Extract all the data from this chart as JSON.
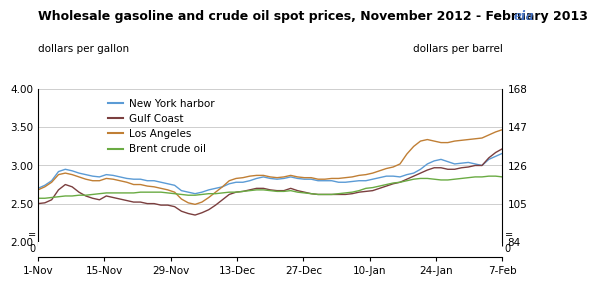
{
  "title": "Wholesale gasoline and crude oil spot prices, November 2012 - February 2013",
  "ylabel_left": "dollars per gallon",
  "ylabel_right": "dollars per barrel",
  "ylim_left": [
    2.0,
    4.0
  ],
  "ylim_right": [
    84,
    168
  ],
  "yticks_left": [
    2.0,
    2.5,
    3.0,
    3.5,
    4.0
  ],
  "yticks_right": [
    84,
    105,
    126,
    147,
    168
  ],
  "xtick_labels": [
    "1-Nov",
    "15-Nov",
    "29-Nov",
    "13-Dec",
    "27-Dec",
    "10-Jan",
    "24-Jan",
    "7-Feb"
  ],
  "series": {
    "New York harbor": {
      "color": "#5b9bd5",
      "values": [
        2.7,
        2.74,
        2.8,
        2.92,
        2.95,
        2.93,
        2.9,
        2.88,
        2.86,
        2.85,
        2.88,
        2.87,
        2.85,
        2.83,
        2.82,
        2.82,
        2.8,
        2.8,
        2.78,
        2.76,
        2.74,
        2.67,
        2.65,
        2.63,
        2.65,
        2.68,
        2.7,
        2.72,
        2.76,
        2.78,
        2.78,
        2.8,
        2.83,
        2.85,
        2.83,
        2.82,
        2.83,
        2.85,
        2.83,
        2.82,
        2.82,
        2.8,
        2.8,
        2.8,
        2.78,
        2.78,
        2.79,
        2.8,
        2.8,
        2.82,
        2.84,
        2.86,
        2.86,
        2.85,
        2.88,
        2.9,
        2.95,
        3.02,
        3.06,
        3.08,
        3.05,
        3.02,
        3.03,
        3.04,
        3.02,
        3.0,
        3.08,
        3.12,
        3.16
      ]
    },
    "Gulf Coast": {
      "color": "#7b3f3f",
      "values": [
        2.5,
        2.51,
        2.55,
        2.68,
        2.75,
        2.72,
        2.65,
        2.6,
        2.57,
        2.55,
        2.6,
        2.58,
        2.56,
        2.54,
        2.52,
        2.52,
        2.5,
        2.5,
        2.48,
        2.48,
        2.46,
        2.4,
        2.37,
        2.35,
        2.38,
        2.42,
        2.48,
        2.55,
        2.62,
        2.65,
        2.66,
        2.68,
        2.7,
        2.7,
        2.68,
        2.67,
        2.67,
        2.7,
        2.67,
        2.65,
        2.63,
        2.62,
        2.62,
        2.62,
        2.62,
        2.62,
        2.63,
        2.65,
        2.66,
        2.67,
        2.7,
        2.73,
        2.76,
        2.78,
        2.82,
        2.86,
        2.9,
        2.94,
        2.97,
        2.97,
        2.95,
        2.95,
        2.97,
        2.98,
        3.0,
        3.0,
        3.1,
        3.17,
        3.22
      ]
    },
    "Los Angeles": {
      "color": "#c07f35",
      "values": [
        2.68,
        2.72,
        2.78,
        2.88,
        2.9,
        2.88,
        2.85,
        2.82,
        2.8,
        2.8,
        2.83,
        2.82,
        2.8,
        2.78,
        2.75,
        2.75,
        2.73,
        2.72,
        2.7,
        2.68,
        2.65,
        2.56,
        2.51,
        2.49,
        2.52,
        2.58,
        2.65,
        2.72,
        2.8,
        2.83,
        2.84,
        2.86,
        2.87,
        2.87,
        2.85,
        2.84,
        2.85,
        2.87,
        2.85,
        2.84,
        2.84,
        2.82,
        2.82,
        2.83,
        2.83,
        2.84,
        2.85,
        2.87,
        2.88,
        2.9,
        2.93,
        2.96,
        2.98,
        3.02,
        3.15,
        3.25,
        3.32,
        3.34,
        3.32,
        3.3,
        3.3,
        3.32,
        3.33,
        3.34,
        3.35,
        3.36,
        3.4,
        3.44,
        3.47
      ]
    },
    "Brent crude oil": {
      "color": "#6aab43",
      "values": [
        2.57,
        2.57,
        2.58,
        2.59,
        2.6,
        2.6,
        2.61,
        2.61,
        2.62,
        2.63,
        2.64,
        2.64,
        2.64,
        2.64,
        2.64,
        2.65,
        2.65,
        2.65,
        2.65,
        2.64,
        2.63,
        2.62,
        2.61,
        2.61,
        2.62,
        2.63,
        2.63,
        2.64,
        2.65,
        2.65,
        2.66,
        2.67,
        2.68,
        2.68,
        2.67,
        2.66,
        2.66,
        2.67,
        2.65,
        2.64,
        2.63,
        2.62,
        2.62,
        2.62,
        2.63,
        2.64,
        2.65,
        2.67,
        2.7,
        2.71,
        2.73,
        2.75,
        2.77,
        2.78,
        2.8,
        2.82,
        2.83,
        2.83,
        2.82,
        2.81,
        2.81,
        2.82,
        2.83,
        2.84,
        2.85,
        2.85,
        2.86,
        2.86,
        2.85
      ]
    }
  },
  "background_color": "#ffffff",
  "grid_color": "#bbbbbb",
  "title_fontsize": 9,
  "axis_label_fontsize": 7.5,
  "tick_fontsize": 7.5,
  "legend_fontsize": 7.5
}
